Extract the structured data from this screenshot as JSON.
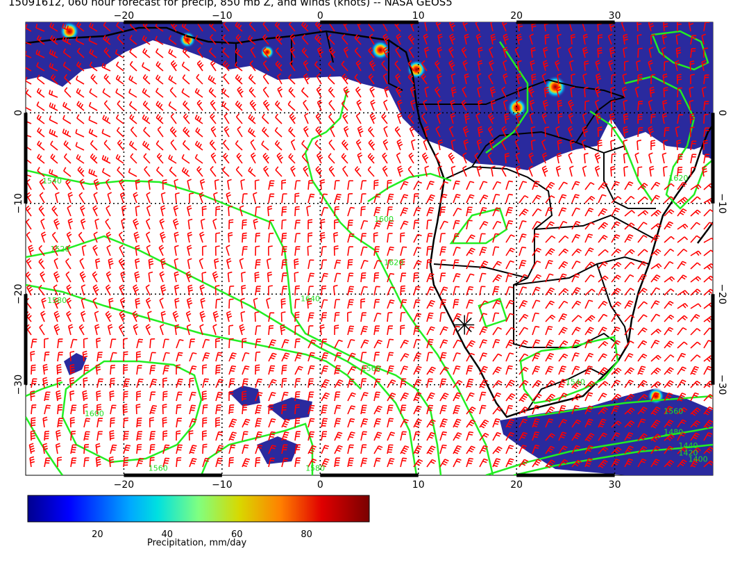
{
  "title": "15091612, 060 hour forecast for precip, 850 mb Z, and winds (knots) -- NASA GEOS5",
  "map": {
    "lon_range": [
      -30,
      40
    ],
    "lat_range": [
      -40,
      10
    ],
    "lon_ticks": [
      {
        "value": -20,
        "label": "−20"
      },
      {
        "value": -10,
        "label": "−10"
      },
      {
        "value": 0,
        "label": "0"
      },
      {
        "value": 10,
        "label": "10"
      },
      {
        "value": 20,
        "label": "20"
      },
      {
        "value": 30,
        "label": "30"
      }
    ],
    "lat_ticks": [
      {
        "value": 0,
        "label": "0"
      },
      {
        "value": -10,
        "label": "−10"
      },
      {
        "value": -20,
        "label": "−20"
      },
      {
        "value": -30,
        "label": "−30"
      }
    ],
    "gridlines": "dotted",
    "colors": {
      "contour": "#22ee22",
      "wind_barbs": "#ff0000",
      "coastline": "#000000",
      "precip_light": "#2a2a9e"
    },
    "contour_labels": [
      {
        "text": "1540",
        "lon": -28.3,
        "lat": -7.8
      },
      {
        "text": "1520",
        "lon": -27.5,
        "lat": -15.3
      },
      {
        "text": "1580",
        "lon": -27.8,
        "lat": -21.0
      },
      {
        "text": "1600",
        "lon": 5.5,
        "lat": -12.0
      },
      {
        "text": "1620",
        "lon": 6.5,
        "lat": -16.8
      },
      {
        "text": "1640",
        "lon": -2.0,
        "lat": -20.8
      },
      {
        "text": "1560",
        "lon": 4.2,
        "lat": -28.5
      },
      {
        "text": "1600",
        "lon": -24.0,
        "lat": -33.5
      },
      {
        "text": "1580",
        "lon": -1.5,
        "lat": -39.5
      },
      {
        "text": "1560",
        "lon": -17.5,
        "lat": -39.5
      },
      {
        "text": "1560",
        "lon": 35.0,
        "lat": -33.2
      },
      {
        "text": "1480",
        "lon": 35.0,
        "lat": -35.5
      },
      {
        "text": "1440",
        "lon": 36.5,
        "lat": -37.0
      },
      {
        "text": "1420",
        "lon": 36.5,
        "lat": -37.8
      },
      {
        "text": "1400",
        "lon": 37.5,
        "lat": -38.5
      },
      {
        "text": "1620",
        "lon": 35.5,
        "lat": -7.5
      },
      {
        "text": "1540",
        "lon": 25.0,
        "lat": -30.0
      }
    ],
    "marker": {
      "label": "station-marker",
      "lon": 14.7,
      "lat": -23.4
    }
  },
  "colorbar": {
    "label": "Precipitation, mm/day",
    "min": 0,
    "max": 98,
    "ticks": [
      20,
      40,
      60,
      80
    ]
  }
}
